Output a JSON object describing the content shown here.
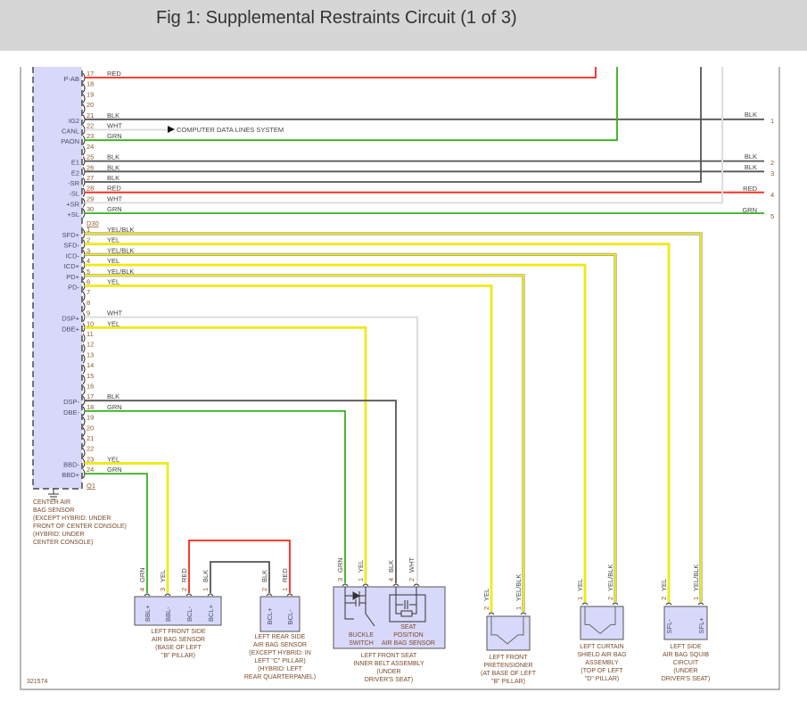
{
  "header": {
    "title": "Fig 1: Supplemental Restraints Circuit (1 of 3)"
  },
  "colors": {
    "RED": "#ff2418",
    "BLK": "#555555",
    "WHT": "#dddddd",
    "GRN": "#34b01c",
    "YEL": "#f4f000",
    "YEL/BLK": "#f4f000",
    "box_fill": "#d8d8fa"
  },
  "connector": {
    "caption": [
      "CENTER AIR",
      "BAG SENSOR",
      "(EXCEPT HYBRID: UNDER",
      "FRONT OF CENTER CONSOLE)",
      "(HYBRID: UNDER",
      "CENTER CONSOLE)"
    ],
    "top_pins": [
      {
        "pin": "17",
        "signal": "P-AB",
        "wire": "RED"
      },
      {
        "pin": "18",
        "signal": "",
        "wire": ""
      },
      {
        "pin": "19",
        "signal": "",
        "wire": ""
      },
      {
        "pin": "20",
        "signal": "",
        "wire": ""
      },
      {
        "pin": "21",
        "signal": "IG2",
        "wire": "BLK"
      },
      {
        "pin": "22",
        "signal": "CANL",
        "wire": "WHT"
      },
      {
        "pin": "23",
        "signal": "PAON",
        "wire": "GRN"
      },
      {
        "pin": "24",
        "signal": "",
        "wire": ""
      },
      {
        "pin": "25",
        "signal": "E1",
        "wire": "BLK"
      },
      {
        "pin": "26",
        "signal": "E2",
        "wire": "BLK"
      },
      {
        "pin": "27",
        "signal": "-SR",
        "wire": "BLK"
      },
      {
        "pin": "28",
        "signal": "-SL",
        "wire": "RED"
      },
      {
        "pin": "29",
        "signal": "+SR",
        "wire": "WHT"
      },
      {
        "pin": "30",
        "signal": "+SL",
        "wire": "GRN"
      }
    ],
    "top_connector_id": "D30",
    "bottom_pins": [
      {
        "pin": "1",
        "signal": "SFD+",
        "wire": "YEL/BLK"
      },
      {
        "pin": "2",
        "signal": "SFD-",
        "wire": "YEL"
      },
      {
        "pin": "3",
        "signal": "ICD-",
        "wire": "YEL/BLK"
      },
      {
        "pin": "4",
        "signal": "ICD+",
        "wire": "YEL"
      },
      {
        "pin": "5",
        "signal": "PD+",
        "wire": "YEL/BLK"
      },
      {
        "pin": "6",
        "signal": "PD-",
        "wire": "YEL"
      },
      {
        "pin": "7",
        "signal": "",
        "wire": ""
      },
      {
        "pin": "8",
        "signal": "",
        "wire": ""
      },
      {
        "pin": "9",
        "signal": "DSP+",
        "wire": "WHT"
      },
      {
        "pin": "10",
        "signal": "DBE+",
        "wire": "YEL"
      },
      {
        "pin": "11",
        "signal": "",
        "wire": ""
      },
      {
        "pin": "12",
        "signal": "",
        "wire": ""
      },
      {
        "pin": "13",
        "signal": "",
        "wire": ""
      },
      {
        "pin": "14",
        "signal": "",
        "wire": ""
      },
      {
        "pin": "15",
        "signal": "",
        "wire": ""
      },
      {
        "pin": "16",
        "signal": "",
        "wire": ""
      },
      {
        "pin": "17",
        "signal": "DSP-",
        "wire": "BLK"
      },
      {
        "pin": "18",
        "signal": "DBE-",
        "wire": "GRN"
      },
      {
        "pin": "19",
        "signal": "",
        "wire": ""
      },
      {
        "pin": "20",
        "signal": "",
        "wire": ""
      },
      {
        "pin": "21",
        "signal": "",
        "wire": ""
      },
      {
        "pin": "22",
        "signal": "",
        "wire": ""
      },
      {
        "pin": "23",
        "signal": "BBD-",
        "wire": "YEL"
      },
      {
        "pin": "24",
        "signal": "BBD+",
        "wire": "GRN"
      }
    ],
    "bottom_connector_id": "Q1"
  },
  "data_lines_label": "COMPUTER DATA LINES SYSTEM",
  "right_terminals": [
    {
      "num": "1",
      "wire": "BLK"
    },
    {
      "num": "2",
      "wire": "BLK"
    },
    {
      "num": "3",
      "wire": "BLK"
    },
    {
      "num": "4",
      "wire": "RED"
    },
    {
      "num": "5",
      "wire": "GRN"
    }
  ],
  "components": [
    {
      "id": "lf-side",
      "caption": [
        "LEFT FRONT SIDE",
        "AIR BAG SENSOR",
        "(BASE OF LEFT",
        "\"B\" PILLAR)"
      ],
      "pins": [
        {
          "num": "4",
          "wire": "GRN",
          "signal": "BBL+"
        },
        {
          "num": "3",
          "wire": "YEL",
          "signal": "BBL-"
        },
        {
          "num": "2",
          "wire": "RED",
          "signal": "BCL-"
        },
        {
          "num": "1",
          "wire": "BLK",
          "signal": "BCL+"
        }
      ]
    },
    {
      "id": "lr-side",
      "caption": [
        "LEFT REAR SIDE",
        "AIR BAG SENSOR",
        "(EXCEPT HYBRID: IN",
        "LEFT \"C\" PILLAR)",
        "(HYBRID: LEFT",
        "REAR QUARTERPANEL)"
      ],
      "pins": [
        {
          "num": "2",
          "wire": "BLK",
          "signal": "BCL+"
        },
        {
          "num": "1",
          "wire": "RED",
          "signal": "BCL-"
        }
      ]
    },
    {
      "id": "inner-belt",
      "caption": [
        "LEFT FRONT SEAT",
        "INNER BELT ASSEMBLY",
        "(UNDER",
        "DRIVER'S SEAT)"
      ],
      "inner_labels": {
        "buckle": [
          "BUCKLE",
          "SWITCH"
        ],
        "seat": [
          "SEAT",
          "POSITION",
          "AIR BAG SENSOR"
        ]
      },
      "pins": [
        {
          "num": "3",
          "wire": "GRN",
          "signal": ""
        },
        {
          "num": "1",
          "wire": "YEL",
          "signal": ""
        },
        {
          "num": "4",
          "wire": "BLK",
          "signal": ""
        },
        {
          "num": "2",
          "wire": "WHT",
          "signal": ""
        }
      ]
    },
    {
      "id": "pretensioner",
      "caption": [
        "LEFT FRONT",
        "PRETENSIONER",
        "(AT BASE OF LEFT",
        "\"B\" PILLAR)"
      ],
      "pins": [
        {
          "num": "2",
          "wire": "YEL",
          "signal": ""
        },
        {
          "num": "1",
          "wire": "YEL/BLK",
          "signal": ""
        }
      ]
    },
    {
      "id": "curtain",
      "caption": [
        "LEFT CURTAIN",
        "SHIELD AIR BAG",
        "ASSEMBLY",
        "(TOP OF LEFT",
        "\"D\" PILLAR)"
      ],
      "pins": [
        {
          "num": "1",
          "wire": "YEL",
          "signal": ""
        },
        {
          "num": "2",
          "wire": "YEL/BLK",
          "signal": ""
        }
      ]
    },
    {
      "id": "side-squib",
      "caption": [
        "LEFT SIDE",
        "AIR BAG SQUIB",
        "CIRCUIT",
        "(UNDER",
        "DRIVER'S SEAT)"
      ],
      "pins": [
        {
          "num": "2",
          "wire": "YEL",
          "signal": "SFL-"
        },
        {
          "num": "1",
          "wire": "YEL/BLK",
          "signal": "SFL+"
        }
      ]
    }
  ],
  "diagram_id": "321574"
}
